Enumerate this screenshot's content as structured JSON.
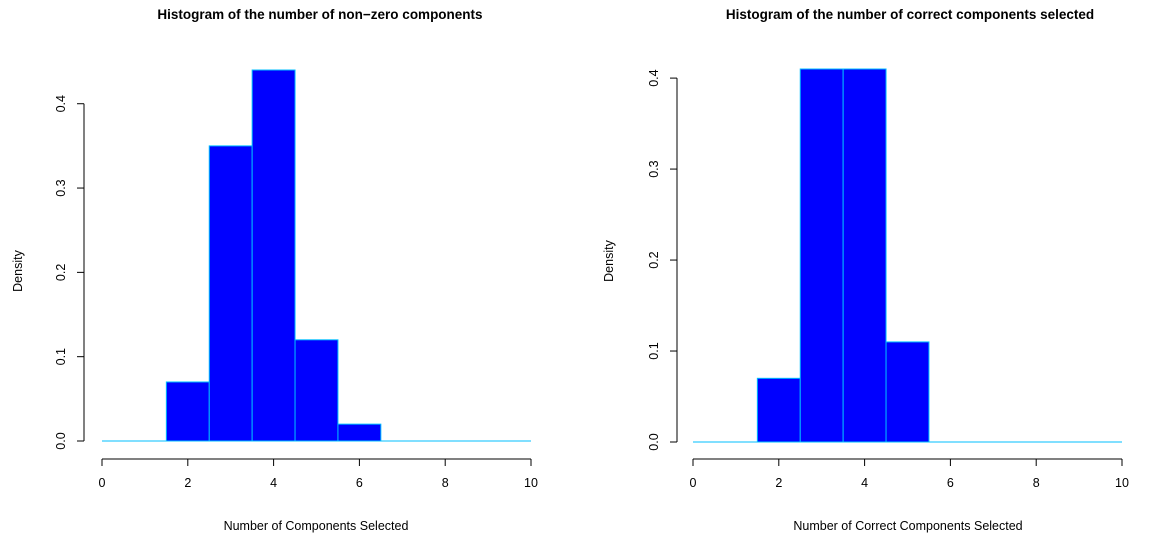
{
  "chart_data": [
    {
      "type": "bar",
      "title": "Histogram of the number of non−zero components",
      "xlabel": "Number of Components Selected",
      "ylabel": "Density",
      "xlim": [
        0,
        10
      ],
      "ylim": [
        0,
        0.44
      ],
      "xticks": [
        0,
        2,
        4,
        6,
        8,
        10
      ],
      "yticks": [
        0.0,
        0.1,
        0.2,
        0.3,
        0.4
      ],
      "xtick_labels": [
        "0",
        "2",
        "4",
        "6",
        "8",
        "10"
      ],
      "ytick_labels": [
        "0.0",
        "0.1",
        "0.2",
        "0.3",
        "0.4"
      ],
      "bins": [
        [
          1.5,
          2.5
        ],
        [
          2.5,
          3.5
        ],
        [
          3.5,
          4.5
        ],
        [
          4.5,
          5.5
        ],
        [
          5.5,
          6.5
        ]
      ],
      "values": [
        0.07,
        0.35,
        0.44,
        0.12,
        0.02
      ],
      "baseline_range": [
        0,
        10
      ],
      "fill_color": "#0000ff",
      "border_color": "#00bfff",
      "grid": false
    },
    {
      "type": "bar",
      "title": "Histogram of the number of correct components selected",
      "xlabel": "Number of Correct Components Selected",
      "ylabel": "Density",
      "xlim": [
        0,
        10
      ],
      "ylim": [
        0,
        0.41
      ],
      "xticks": [
        0,
        2,
        4,
        6,
        8,
        10
      ],
      "yticks": [
        0.0,
        0.1,
        0.2,
        0.3,
        0.4
      ],
      "xtick_labels": [
        "0",
        "2",
        "4",
        "6",
        "8",
        "10"
      ],
      "ytick_labels": [
        "0.0",
        "0.1",
        "0.2",
        "0.3",
        "0.4"
      ],
      "bins": [
        [
          1.5,
          2.5
        ],
        [
          2.5,
          3.5
        ],
        [
          3.5,
          4.5
        ],
        [
          4.5,
          5.5
        ]
      ],
      "values": [
        0.07,
        0.41,
        0.41,
        0.11
      ],
      "baseline_range": [
        0,
        10
      ],
      "fill_color": "#0000ff",
      "border_color": "#00bfff",
      "grid": false
    }
  ]
}
